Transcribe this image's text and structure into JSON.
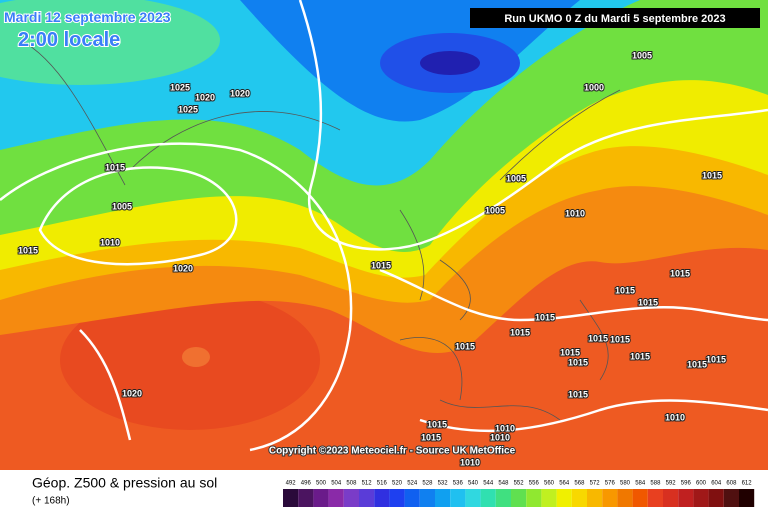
{
  "header": {
    "date": "Mardi 12 septembre 2023",
    "time": "2:00 locale",
    "run": "Run UKMO 0 Z du Mardi 5 septembre 2023"
  },
  "isobar_labels": [
    "1025",
    "1020",
    "1025",
    "1020",
    "1015",
    "1005",
    "1010",
    "1015",
    "1020",
    "1020",
    "1015",
    "1005",
    "1005",
    "1010",
    "1005",
    "1000",
    "1015",
    "1015",
    "1015",
    "1015",
    "1015",
    "1015",
    "1015",
    "1015",
    "1015",
    "1015",
    "1015",
    "1015",
    "1015",
    "1015",
    "1015",
    "1015",
    "1010",
    "1010",
    "1015",
    "1010",
    "1010"
  ],
  "copyright": "Copyright ©2023 Meteociel.fr - Source UK MetOffice",
  "legend": {
    "title": "Géop. Z500 & pression au sol",
    "subtitle": "(+ 168h)",
    "scale": {
      "values": [
        492,
        496,
        500,
        504,
        508,
        512,
        516,
        520,
        524,
        528,
        532,
        536,
        540,
        544,
        548,
        552,
        556,
        560,
        564,
        568,
        572,
        576,
        580,
        584,
        588,
        592,
        596,
        600,
        604,
        608,
        612
      ],
      "colors": [
        "#2a0a3a",
        "#4b1460",
        "#6a1b8a",
        "#8a2aa8",
        "#7a3cc8",
        "#5a3cd8",
        "#3030e0",
        "#1e40f0",
        "#1060f0",
        "#1080f0",
        "#10a0f0",
        "#20c0f0",
        "#30d8e0",
        "#30e0b0",
        "#40e080",
        "#60e050",
        "#90e830",
        "#c0f020",
        "#f0f000",
        "#f8d800",
        "#f8b800",
        "#f89800",
        "#f07800",
        "#f05800",
        "#e84020",
        "#d83020",
        "#c02020",
        "#a01818",
        "#801010",
        "#501010",
        "#200000"
      ]
    }
  }
}
